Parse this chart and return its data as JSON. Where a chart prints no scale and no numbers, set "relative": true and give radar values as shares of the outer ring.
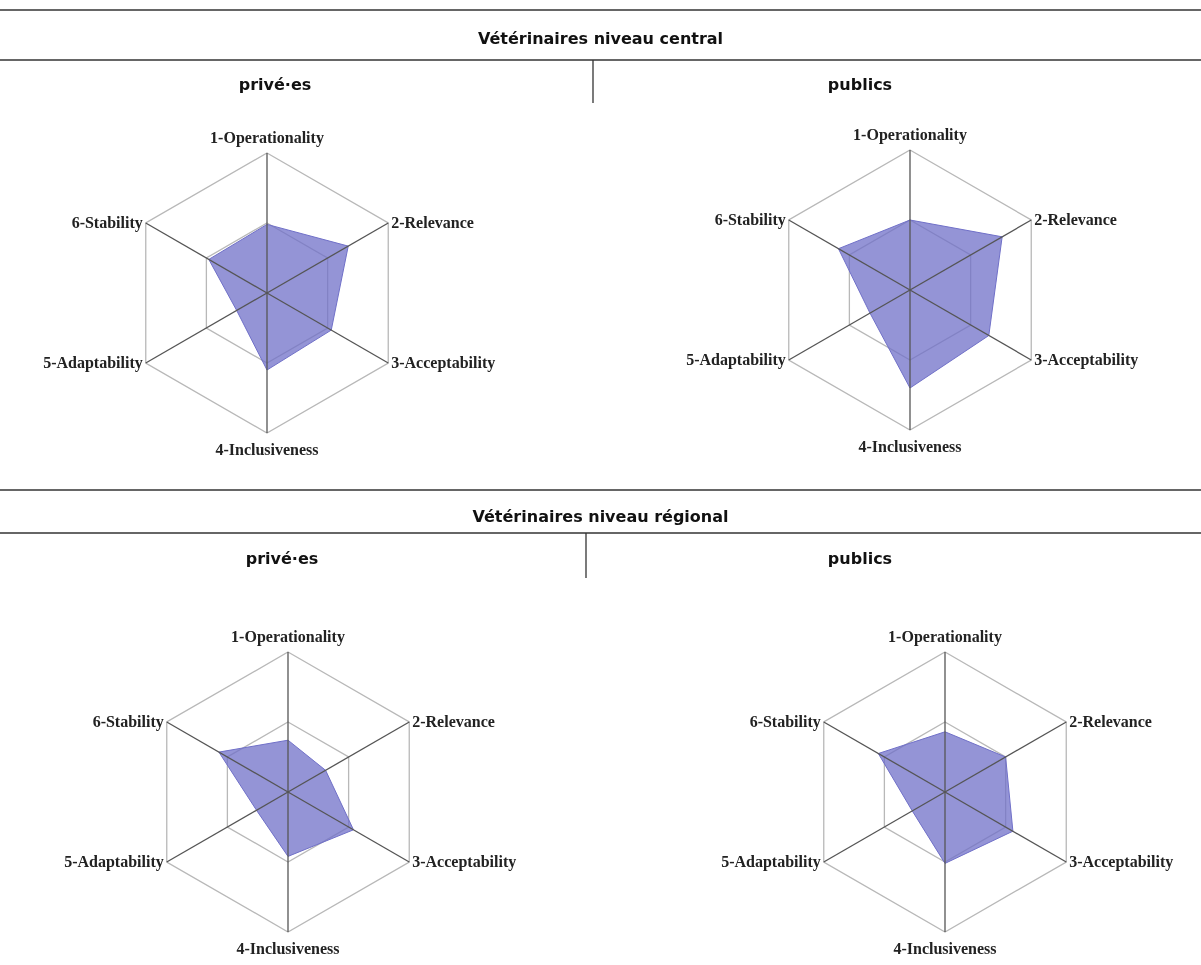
{
  "chart_data": [
    {
      "type": "radar",
      "title": "Vétérinaires niveau central",
      "subtitle": "privé·es",
      "categories": [
        "1-Operationality",
        "2-Relevance",
        "3-Acceptability",
        "4-Inclusiveness",
        "5-Adaptability",
        "6-Stability"
      ],
      "relative": true,
      "grid": true,
      "series": [
        {
          "color": "#7070c8",
          "values": [
            0.49,
            0.67,
            0.53,
            0.55,
            0.25,
            0.48
          ]
        }
      ]
    },
    {
      "type": "radar",
      "subtitle": "publics",
      "categories": [
        "1-Operationality",
        "2-Relevance",
        "3-Acceptability",
        "4-Inclusiveness",
        "5-Adaptability",
        "6-Stability"
      ],
      "relative": true,
      "grid": true,
      "series": [
        {
          "color": "#7070c8",
          "values": [
            0.5,
            0.76,
            0.65,
            0.7,
            0.33,
            0.59
          ]
        }
      ]
    },
    {
      "type": "radar",
      "title": "Vétérinaires niveau régional",
      "subtitle": "privé·es",
      "categories": [
        "1-Operationality",
        "2-Relevance",
        "3-Acceptability",
        "4-Inclusiveness",
        "5-Adaptability",
        "6-Stability"
      ],
      "relative": true,
      "grid": true,
      "series": [
        {
          "color": "#7070c8",
          "values": [
            0.37,
            0.31,
            0.54,
            0.46,
            0.26,
            0.57
          ]
        }
      ]
    },
    {
      "type": "radar",
      "subtitle": "publics",
      "categories": [
        "1-Operationality",
        "2-Relevance",
        "3-Acceptability",
        "4-Inclusiveness",
        "5-Adaptability",
        "6-Stability"
      ],
      "relative": true,
      "grid": true,
      "series": [
        {
          "color": "#7070c8",
          "values": [
            0.43,
            0.5,
            0.56,
            0.51,
            0.27,
            0.55
          ]
        }
      ]
    }
  ]
}
